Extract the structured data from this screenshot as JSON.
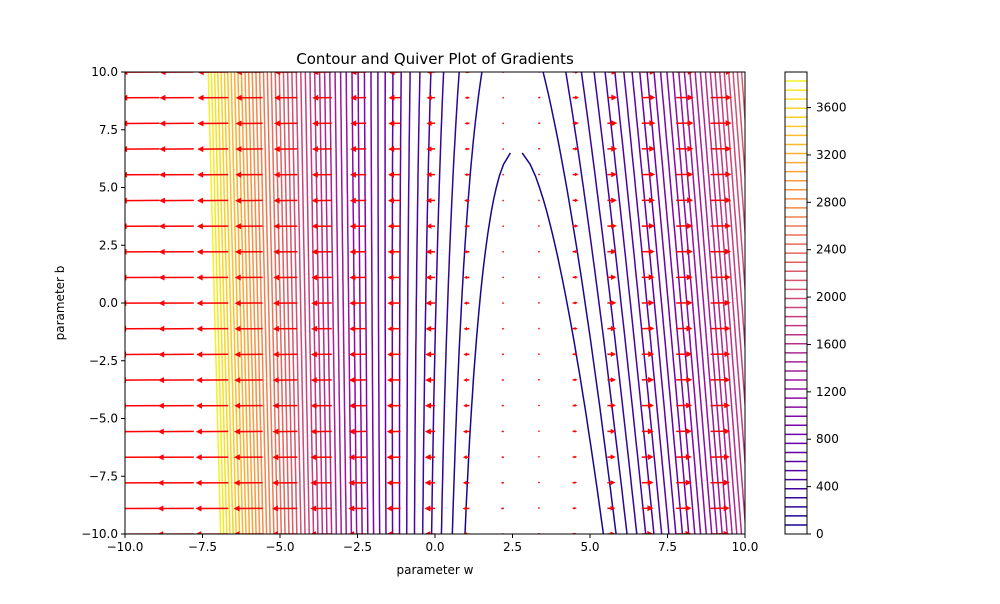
{
  "chart_data": {
    "type": "contour",
    "title": "Contour and Quiver Plot of Gradients",
    "xlabel": "parameter w",
    "ylabel": "parameter b",
    "xlim": [
      -10,
      10
    ],
    "ylim": [
      -10,
      10
    ],
    "x_ticks": [
      -10.0,
      -7.5,
      -5.0,
      -2.5,
      0.0,
      2.5,
      5.0,
      7.5,
      10.0
    ],
    "x_tick_labels": [
      "−10.0",
      "−7.5",
      "−5.0",
      "−2.5",
      "0.0",
      "2.5",
      "5.0",
      "7.5",
      "10.0"
    ],
    "y_ticks": [
      -10.0,
      -7.5,
      -5.0,
      -2.5,
      0.0,
      2.5,
      5.0,
      7.5,
      10.0
    ],
    "y_tick_labels": [
      "−10.0",
      "−7.5",
      "−5.0",
      "−2.5",
      "0.0",
      "2.5",
      "5.0",
      "7.5",
      "10.0"
    ],
    "colorbar": {
      "colormap": "plasma",
      "range": [
        0,
        3900
      ],
      "ticks": [
        0,
        400,
        800,
        1200,
        1600,
        2000,
        2400,
        2800,
        3200,
        3600
      ],
      "tick_labels": [
        "0",
        "400",
        "800",
        "1200",
        "1600",
        "2000",
        "2400",
        "2800",
        "3200",
        "3600"
      ]
    },
    "contour": {
      "levels": 50,
      "minimum_line": {
        "w_at_b_min": 3.2,
        "w_at_b_max": 2.5
      },
      "scale": 37.5,
      "quadratic_coef": 38.5,
      "linear_b_coef": 0.3
    },
    "quiver": {
      "color": "#ff0000",
      "w_positions": [
        -10,
        -8.89,
        -7.78,
        -6.67,
        -5.56,
        -4.44,
        -3.33,
        -2.22,
        -1.11,
        0,
        1.11,
        2.22,
        3.33,
        4.44,
        5.56,
        6.67,
        7.78,
        8.89,
        10
      ],
      "b_positions": [
        -10,
        -8.89,
        -7.78,
        -6.67,
        -5.56,
        -4.44,
        -3.33,
        -2.22,
        -1.11,
        0,
        1.11,
        2.22,
        3.33,
        4.44,
        5.56,
        6.67,
        7.78,
        8.89,
        10
      ]
    }
  }
}
